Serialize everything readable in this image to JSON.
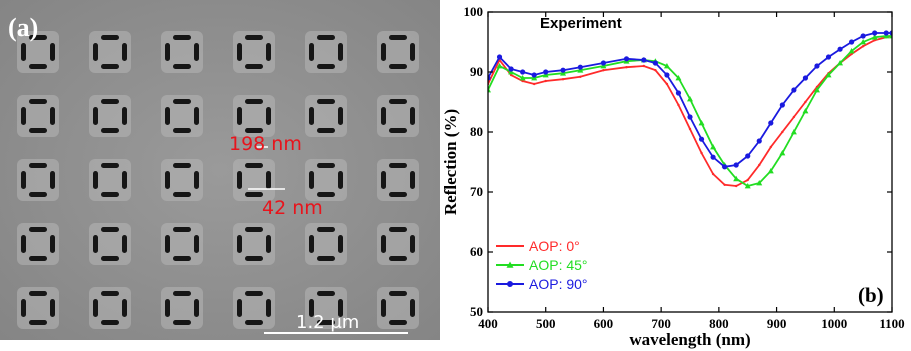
{
  "sem": {
    "panel_label": "(a)",
    "annotation_gap": "198 nm",
    "annotation_width": "42 nm",
    "scale_bar": "1.2 μm",
    "grid": {
      "columns": 6,
      "rows": 5
    }
  },
  "chart_data": {
    "type": "line",
    "panel_label": "(b)",
    "title": "Experiment",
    "xlabel": "wavelength (nm)",
    "ylabel": "Reflection (%)",
    "xlim": [
      400,
      1100
    ],
    "ylim": [
      50,
      100
    ],
    "xticks": [
      400,
      500,
      600,
      700,
      800,
      900,
      1000,
      1100
    ],
    "yticks": [
      50,
      60,
      70,
      80,
      90,
      100
    ],
    "grid": false,
    "legend_position": "bottom-left",
    "series": [
      {
        "name": "AOP: 0°",
        "color": "#ff2a2a",
        "marker": "none",
        "x": [
          400,
          420,
          440,
          460,
          480,
          500,
          530,
          560,
          600,
          640,
          670,
          690,
          710,
          730,
          750,
          770,
          790,
          810,
          830,
          850,
          870,
          890,
          910,
          930,
          950,
          970,
          990,
          1010,
          1030,
          1050,
          1070,
          1090,
          1100
        ],
        "y": [
          88.0,
          92.0,
          89.5,
          88.5,
          88.0,
          88.5,
          88.8,
          89.2,
          90.3,
          90.8,
          91.0,
          90.3,
          88.0,
          84.5,
          80.5,
          76.5,
          73.0,
          71.2,
          71.0,
          72.0,
          74.5,
          77.5,
          80.0,
          82.5,
          85.0,
          87.5,
          89.8,
          91.5,
          93.0,
          94.3,
          95.3,
          95.8,
          96.0
        ]
      },
      {
        "name": "AOP: 45°",
        "color": "#22dd22",
        "marker": "triangle",
        "x": [
          400,
          420,
          440,
          460,
          480,
          500,
          530,
          560,
          600,
          640,
          670,
          690,
          710,
          730,
          750,
          770,
          790,
          810,
          830,
          850,
          870,
          890,
          910,
          930,
          950,
          970,
          990,
          1010,
          1030,
          1050,
          1070,
          1090,
          1100
        ],
        "y": [
          87.0,
          91.0,
          90.0,
          89.0,
          89.0,
          89.5,
          89.8,
          90.3,
          91.0,
          91.8,
          92.0,
          91.8,
          91.0,
          89.0,
          85.5,
          81.5,
          77.5,
          74.5,
          72.2,
          71.0,
          71.5,
          73.5,
          76.5,
          80.0,
          83.5,
          87.0,
          89.5,
          91.5,
          93.5,
          95.0,
          95.8,
          96.0,
          96.0
        ]
      },
      {
        "name": "AOP: 90°",
        "color": "#1a1adf",
        "marker": "circle",
        "x": [
          400,
          420,
          440,
          460,
          480,
          500,
          530,
          560,
          600,
          640,
          670,
          690,
          710,
          730,
          750,
          770,
          790,
          810,
          830,
          850,
          870,
          890,
          910,
          930,
          950,
          970,
          990,
          1010,
          1030,
          1050,
          1070,
          1090,
          1100
        ],
        "y": [
          89.0,
          92.5,
          90.5,
          90.0,
          89.5,
          90.0,
          90.3,
          90.8,
          91.5,
          92.2,
          92.0,
          91.5,
          89.5,
          86.5,
          82.5,
          78.8,
          75.8,
          74.2,
          74.5,
          76.0,
          78.5,
          81.5,
          84.5,
          87.0,
          89.0,
          91.0,
          92.5,
          93.8,
          95.0,
          96.0,
          96.5,
          96.5,
          96.5
        ]
      }
    ]
  }
}
